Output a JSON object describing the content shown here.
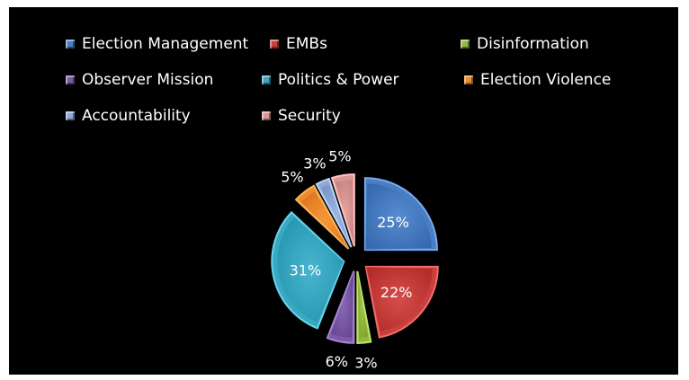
{
  "chart_data": {
    "type": "pie",
    "title": "",
    "legend_position": "top",
    "slices": [
      {
        "name": "Election Management",
        "value": 25,
        "label": "25%",
        "color": "#4a7ec2"
      },
      {
        "name": "EMBs",
        "value": 22,
        "label": "22%",
        "color": "#c7403d"
      },
      {
        "name": "Disinformation",
        "value": 3,
        "label": "3%",
        "color": "#93b840"
      },
      {
        "name": "Observer Mission",
        "value": 6,
        "label": "6%",
        "color": "#7b5aa6"
      },
      {
        "name": "Politics & Power",
        "value": 31,
        "label": "31%",
        "color": "#3aa8c1"
      },
      {
        "name": "Election Violence",
        "value": 5,
        "label": "5%",
        "color": "#ee8a2f"
      },
      {
        "name": "Accountability",
        "value": 3,
        "label": "3%",
        "color": "#8ea8d8"
      },
      {
        "name": "Security",
        "value": 5,
        "label": "5%",
        "color": "#d99694"
      }
    ]
  }
}
